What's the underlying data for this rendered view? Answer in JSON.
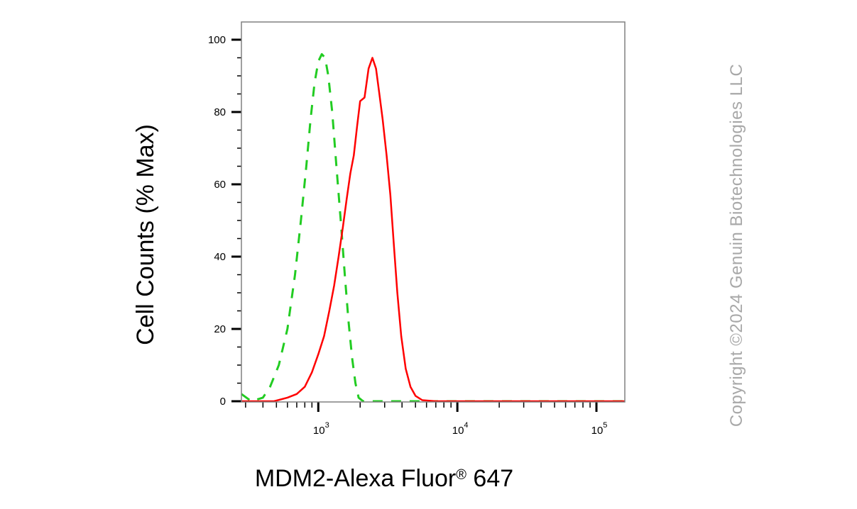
{
  "chart_data": {
    "type": "line",
    "ylabel": "Cell Counts (% Max)",
    "xlabel": "MDM2-Alexa Fluor",
    "xlabel_mark": "®",
    "xlabel_suffix": " 647",
    "x_scale": "log",
    "xlim": [
      280,
      160000
    ],
    "ylim": [
      0,
      100
    ],
    "x_ticks": [
      {
        "base": "10",
        "exp": "3",
        "value": 1000
      },
      {
        "base": "10",
        "exp": "4",
        "value": 10000
      },
      {
        "base": "10",
        "exp": "5",
        "value": 100000
      }
    ],
    "y_ticks": [
      "0",
      "20",
      "40",
      "60",
      "80",
      "100"
    ],
    "y_tick_values": [
      0,
      20,
      40,
      60,
      80,
      100
    ],
    "grid": false,
    "series": [
      {
        "color": "#22cc22",
        "style": "dashed",
        "points": [
          [
            280,
            2
          ],
          [
            330,
            0
          ],
          [
            400,
            1
          ],
          [
            450,
            4
          ],
          [
            520,
            10
          ],
          [
            600,
            20
          ],
          [
            680,
            35
          ],
          [
            750,
            50
          ],
          [
            820,
            65
          ],
          [
            880,
            78
          ],
          [
            940,
            88
          ],
          [
            1000,
            94
          ],
          [
            1060,
            96
          ],
          [
            1120,
            95
          ],
          [
            1180,
            90
          ],
          [
            1260,
            80
          ],
          [
            1350,
            65
          ],
          [
            1450,
            50
          ],
          [
            1550,
            35
          ],
          [
            1650,
            22
          ],
          [
            1750,
            12
          ],
          [
            1850,
            5
          ],
          [
            1950,
            1
          ],
          [
            2100,
            0
          ],
          [
            160000,
            0
          ]
        ]
      },
      {
        "color": "#ff0000",
        "style": "solid",
        "points": [
          [
            280,
            0
          ],
          [
            480,
            0
          ],
          [
            600,
            1
          ],
          [
            700,
            2
          ],
          [
            800,
            4
          ],
          [
            900,
            8
          ],
          [
            1000,
            13
          ],
          [
            1100,
            18
          ],
          [
            1200,
            25
          ],
          [
            1300,
            32
          ],
          [
            1400,
            40
          ],
          [
            1500,
            48
          ],
          [
            1600,
            56
          ],
          [
            1700,
            63
          ],
          [
            1800,
            68
          ],
          [
            1900,
            76
          ],
          [
            2000,
            83
          ],
          [
            2150,
            84
          ],
          [
            2300,
            92
          ],
          [
            2450,
            95
          ],
          [
            2600,
            92
          ],
          [
            2750,
            85
          ],
          [
            2900,
            78
          ],
          [
            3100,
            68
          ],
          [
            3300,
            57
          ],
          [
            3500,
            43
          ],
          [
            3700,
            30
          ],
          [
            3950,
            18
          ],
          [
            4250,
            9
          ],
          [
            4600,
            4
          ],
          [
            5000,
            1.5
          ],
          [
            5600,
            0.3
          ],
          [
            7000,
            0
          ],
          [
            160000,
            0
          ]
        ]
      }
    ]
  },
  "copyright": "Copyright ©2024 Genuin Biotechnologies LLC"
}
